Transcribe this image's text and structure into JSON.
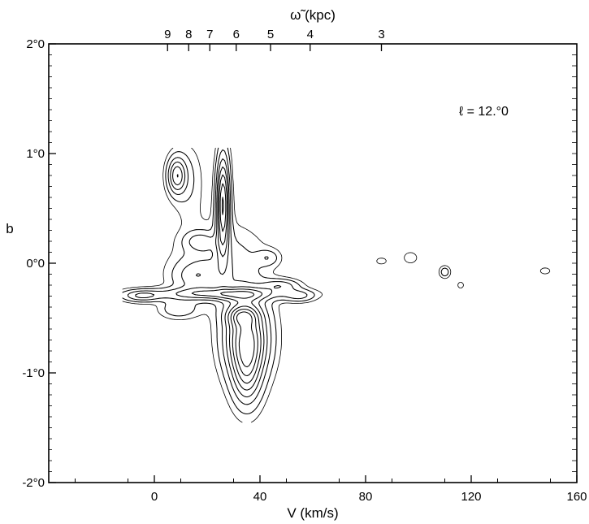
{
  "chart_data": {
    "type": "contour",
    "xlabel": "V (km/s)",
    "ylabel": "b",
    "top_axis_label": "ω̃ (kpc)",
    "annotation": "ℓ = 12.°0",
    "xlim": [
      -40,
      160
    ],
    "ylim": [
      -2.0,
      2.0
    ],
    "x_ticks": [
      {
        "value": 0,
        "label": "0"
      },
      {
        "value": 40,
        "label": "40"
      },
      {
        "value": 80,
        "label": "80"
      },
      {
        "value": 120,
        "label": "120"
      },
      {
        "value": 160,
        "label": "160"
      }
    ],
    "y_ticks": [
      {
        "value": 2.0,
        "label": "2°0"
      },
      {
        "value": 1.0,
        "label": "1°0"
      },
      {
        "value": 0.0,
        "label": "0°0"
      },
      {
        "value": -1.0,
        "label": "-1°0"
      },
      {
        "value": -2.0,
        "label": "-2°0"
      }
    ],
    "top_ticks": [
      {
        "value": 5,
        "label": "9"
      },
      {
        "value": 13,
        "label": "8"
      },
      {
        "value": 21,
        "label": "7"
      },
      {
        "value": 31,
        "label": "6"
      },
      {
        "value": 44,
        "label": "5"
      },
      {
        "value": 59,
        "label": "4"
      },
      {
        "value": 86,
        "label": "3"
      }
    ],
    "emission_features": [
      {
        "v": 8.4,
        "b": 0.8,
        "sv": 2.5,
        "sb": 0.12,
        "amp": 7
      },
      {
        "v": 13,
        "b": 0.75,
        "sv": 4,
        "sb": 0.25,
        "amp": 2
      },
      {
        "v": 26,
        "b": 0.55,
        "sv": 1.8,
        "sb": 0.32,
        "amp": 11
      },
      {
        "v": 17,
        "b": 0.2,
        "sv": 4,
        "sb": 0.06,
        "amp": 3
      },
      {
        "v": 15,
        "b": -0.12,
        "sv": 6,
        "sb": 0.1,
        "amp": 3
      },
      {
        "v": 25,
        "b": 0.0,
        "sv": 12,
        "sb": 0.25,
        "amp": 3
      },
      {
        "v": 24,
        "b": -0.28,
        "sv": 20,
        "sb": 0.04,
        "amp": 5
      },
      {
        "v": -5,
        "b": -0.3,
        "sv": 5,
        "sb": 0.04,
        "amp": 4
      },
      {
        "v": 48,
        "b": -0.2,
        "sv": 5,
        "sb": 0.04,
        "amp": 4
      },
      {
        "v": 55,
        "b": -0.3,
        "sv": 4,
        "sb": 0.04,
        "amp": 3
      },
      {
        "v": 9,
        "b": -0.42,
        "sv": 5,
        "sb": 0.06,
        "amp": 3
      },
      {
        "v": 35,
        "b": -0.68,
        "sv": 6,
        "sb": 0.26,
        "amp": 11
      },
      {
        "v": 35,
        "b": -1.05,
        "sv": 4,
        "sb": 0.22,
        "amp": 5
      },
      {
        "v": 33,
        "b": -0.48,
        "sv": 4,
        "sb": 0.06,
        "amp": 4
      },
      {
        "v": 43,
        "b": 0.05,
        "sv": 3,
        "sb": 0.05,
        "amp": 2.5
      },
      {
        "v": 97,
        "b": 0.05,
        "sv": 2,
        "sb": 0.04,
        "amp": 2
      },
      {
        "v": 110,
        "b": -0.08,
        "sv": 1.5,
        "sb": 0.04,
        "amp": 3
      },
      {
        "v": 148,
        "b": -0.07,
        "sv": 2,
        "sb": 0.03,
        "amp": 1.5
      },
      {
        "v": 86,
        "b": 0.02,
        "sv": 2,
        "sb": 0.03,
        "amp": 1.5
      },
      {
        "v": 116,
        "b": -0.2,
        "sv": 1.2,
        "sb": 0.03,
        "amp": 1.5
      }
    ],
    "contour_levels": [
      1,
      2,
      3.5,
      5,
      6.5,
      8,
      9.5,
      11
    ],
    "dashed_levels": [
      1
    ],
    "grid": false,
    "legend": "none"
  }
}
